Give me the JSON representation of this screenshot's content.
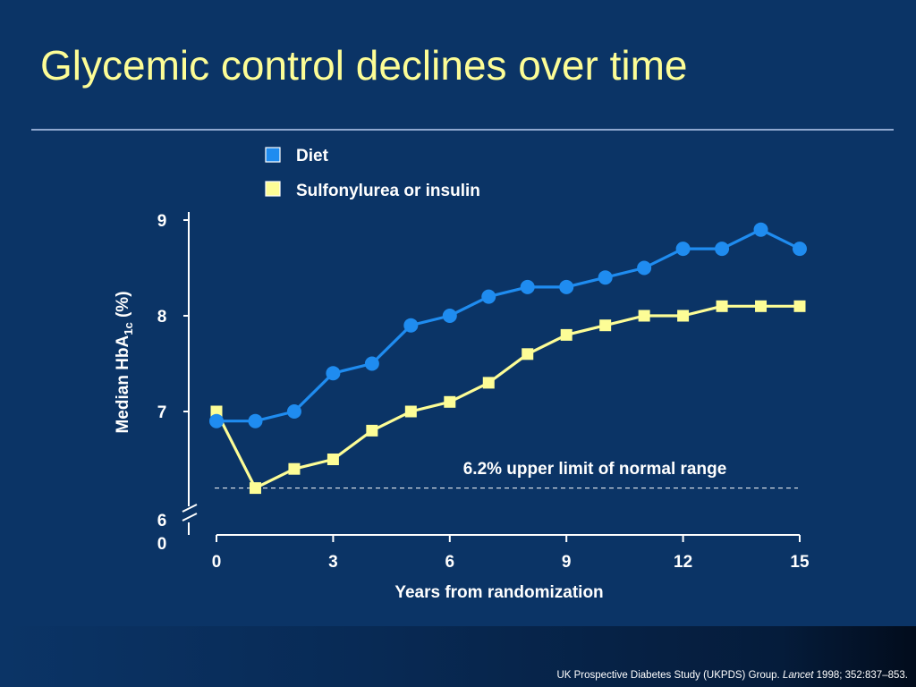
{
  "slide": {
    "title": "Glycemic control declines over time",
    "citation_prefix": "UK Prospective Diabetes Study (UKPDS) Group. ",
    "citation_journal": "Lancet",
    "citation_suffix": " 1998; 352:837–853."
  },
  "colors": {
    "background": "#0b3466",
    "title": "#fdfd96",
    "diet": "#1f8cf0",
    "sulfonylurea": "#fdfd96",
    "axis": "#ffffff"
  },
  "chart_data": {
    "type": "line",
    "xlabel": "Years from randomization",
    "ylabel_main": "Median HbA",
    "ylabel_sub": "1c",
    "ylabel_unit": " (%)",
    "xlim": [
      0,
      15
    ],
    "ylim": [
      6,
      9
    ],
    "y_break": true,
    "x_ticks": [
      0,
      3,
      6,
      9,
      12,
      15
    ],
    "x_tick_labels": [
      "0",
      "3",
      "6",
      "9",
      "12",
      "15"
    ],
    "y_ticks": [
      7,
      8,
      9
    ],
    "y_tick_labels": [
      "7",
      "8",
      "9"
    ],
    "y_origin_label": [
      "6",
      "0"
    ],
    "legend_position": "top-center",
    "grid": false,
    "series": [
      {
        "name": "Diet",
        "marker": "circle",
        "x": [
          0,
          1,
          2,
          3,
          4,
          5,
          6,
          7,
          8,
          9,
          10,
          11,
          12,
          13,
          14,
          15
        ],
        "values": [
          6.9,
          6.9,
          7.0,
          7.4,
          7.5,
          7.9,
          8.0,
          8.2,
          8.3,
          8.3,
          8.4,
          8.5,
          8.7,
          8.7,
          8.9,
          8.7
        ]
      },
      {
        "name": "Sulfonylurea or insulin",
        "marker": "square",
        "x": [
          0,
          1,
          2,
          3,
          4,
          5,
          6,
          7,
          8,
          9,
          10,
          11,
          12,
          13,
          14,
          15
        ],
        "values": [
          7.0,
          6.2,
          6.4,
          6.5,
          6.8,
          7.0,
          7.1,
          7.3,
          7.6,
          7.8,
          7.9,
          8.0,
          8.0,
          8.1,
          8.1,
          8.1
        ]
      }
    ],
    "reference_line": {
      "y": 6.2,
      "label": "6.2% upper limit of normal range"
    }
  }
}
